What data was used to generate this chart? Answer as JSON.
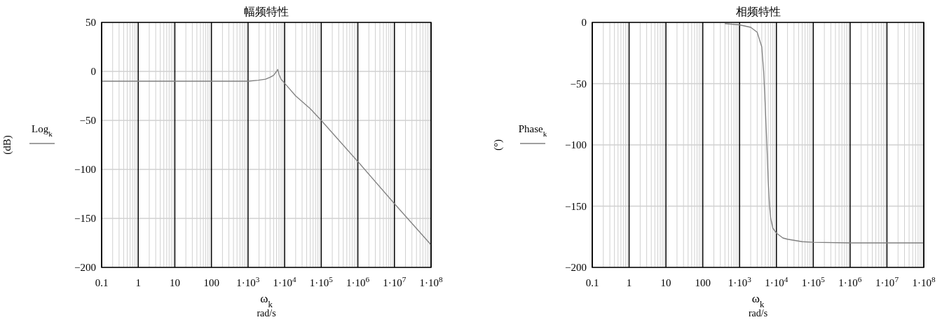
{
  "chart_data": [
    {
      "type": "line",
      "title": "幅频特性",
      "xlabel": "ω$_{k}$\nrad/s",
      "ylabel": "(dB)",
      "log": "x",
      "grid": true,
      "legend": "left",
      "line_style": "solid",
      "xlim": [
        0.1,
        100000000
      ],
      "xticks": [
        0.1,
        1,
        10,
        100,
        {
          "value": 1000,
          "label": "1·10$^{3}$"
        },
        {
          "value": 10000,
          "label": "1·10$^{4}$"
        },
        {
          "value": 100000,
          "label": "1·10$^{5}$"
        },
        {
          "value": 1000000,
          "label": "1·10$^{6}$"
        },
        {
          "value": 10000000,
          "label": "1·10$^{7}$"
        },
        {
          "value": 100000000,
          "label": "1·10$^{8}$"
        }
      ],
      "ylim": [
        -200,
        50
      ],
      "yticks": [
        -200,
        -150,
        -100,
        -50,
        0,
        50
      ],
      "series": [
        {
          "name": "Log$_{k}$",
          "color": "#808080",
          "x": [
            0.1,
            1,
            10,
            100,
            1000,
            1900,
            3000,
            4000,
            5000,
            6000,
            6500,
            7000,
            8000,
            10000,
            20000,
            50000,
            100000,
            1000000,
            10000000,
            100000000
          ],
          "values": [
            -10,
            -10,
            -10,
            -10,
            -10,
            -9,
            -8,
            -6,
            -4,
            0,
            2,
            -3,
            -8,
            -12,
            -25,
            -38,
            -50,
            -92,
            -135,
            -177
          ]
        }
      ]
    },
    {
      "type": "line",
      "title": "相频特性",
      "xlabel": "ω$_{k}$\nrad/s",
      "ylabel": "(°)",
      "log": "x",
      "grid": true,
      "legend": "left",
      "line_style": "solid",
      "xlim": [
        0.1,
        100000000
      ],
      "xticks": [
        0.1,
        1,
        10,
        100,
        {
          "value": 1000,
          "label": "1·10$^{3}$"
        },
        {
          "value": 10000,
          "label": "1·10$^{4}$"
        },
        {
          "value": 100000,
          "label": "1·10$^{5}$"
        },
        {
          "value": 1000000,
          "label": "1·10$^{6}$"
        },
        {
          "value": 10000000,
          "label": "1·10$^{7}$"
        },
        {
          "value": 100000000,
          "label": "1·10$^{8}$"
        }
      ],
      "ylim": [
        -200,
        0
      ],
      "yticks": [
        -200,
        -150,
        -100,
        -50,
        0
      ],
      "series": [
        {
          "name": "Phase$_{k}$",
          "color": "#808080",
          "x": [
            400,
            1000,
            2000,
            3000,
            4000,
            4500,
            5000,
            5500,
            6000,
            6500,
            7000,
            8000,
            10000,
            15000,
            20000,
            50000,
            100000,
            1000000,
            100000000
          ],
          "values": [
            -1,
            -2,
            -4,
            -8,
            -20,
            -40,
            -70,
            -100,
            -130,
            -150,
            -160,
            -168,
            -172,
            -176,
            -177,
            -179,
            -179.5,
            -180,
            -180
          ]
        }
      ]
    }
  ]
}
